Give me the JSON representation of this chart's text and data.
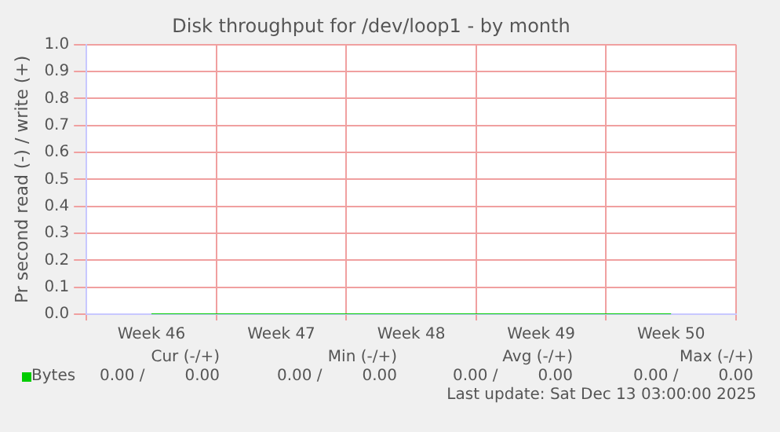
{
  "chart_data": {
    "type": "line",
    "title": "Disk throughput for /dev/loop1 - by month",
    "ylabel": "Pr second read (-) / write (+)",
    "categories": [
      "Week 46",
      "Week 47",
      "Week 48",
      "Week 49",
      "Week 50"
    ],
    "series": [
      {
        "name": "Bytes",
        "color": "#00cc00",
        "values": [
          0,
          0,
          0,
          0,
          0
        ]
      }
    ],
    "ylim": [
      0,
      1
    ],
    "yticks": [
      {
        "value": 0,
        "label": "0.0"
      },
      0.1,
      0.2,
      0.3,
      0.4,
      0.5,
      0.6,
      0.7,
      0.8,
      0.9,
      {
        "value": 1,
        "label": "1.0"
      }
    ],
    "grid": true,
    "legend": "bottom left",
    "marker": "none",
    "line_style": "solid",
    "annotations": [
      "Cur (-/+)",
      "Min (-/+)",
      "Avg (-/+)",
      "Max (-/+)",
      "0.00 /        0.00",
      "0.00 /        0.00",
      "0.00 /        0.00",
      "0.00 /        0.00",
      "Last update: Sat Dec 13 03:00:00 2025"
    ]
  }
}
